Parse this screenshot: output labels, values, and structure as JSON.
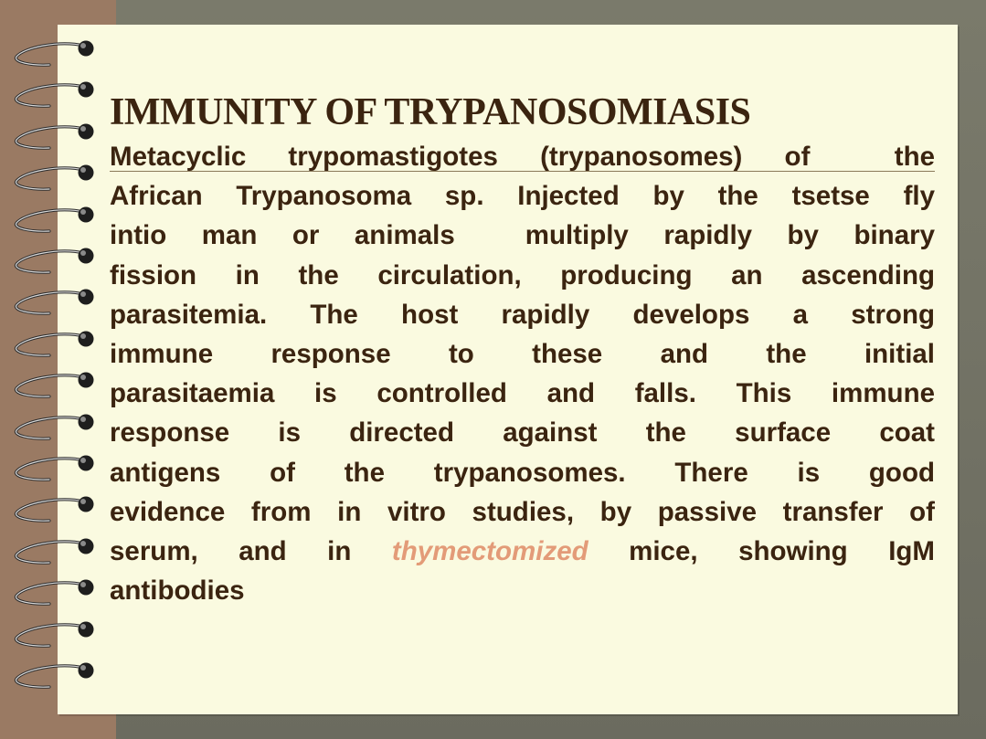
{
  "slide": {
    "title": "IMMUNITY OF TRYPANOSOMIASIS",
    "accent_color": "#e39b78",
    "paragraph": {
      "line_1": "Metacyclic trypomastigotes (trypanosomes) of  the",
      "line_2": "African Trypanosoma sp. Injected by the tsetse fly",
      "line_3": "intio man or animals  multiply rapidly by binary",
      "line_4": "fission in the circulation, producing an ascending",
      "line_5": "parasitemia. The host rapidly develops a strong",
      "line_6": "immune response to these and the initial",
      "line_7": "parasitaemia is controlled and falls. This immune",
      "line_8": "response is directed against the surface coat",
      "line_9": "antigens of the trypanosomes. There is good",
      "line_10": "evidence from in vitro studies, by passive transfer of",
      "line_11_before": "serum, and in ",
      "line_11_highlight": "thymectomized",
      "line_11_after": " mice, showing IgM",
      "line_12": "antibodies"
    }
  },
  "decor": {
    "binder_ring_count": 16,
    "binder_ring_icon": "spiral-ring-icon"
  }
}
